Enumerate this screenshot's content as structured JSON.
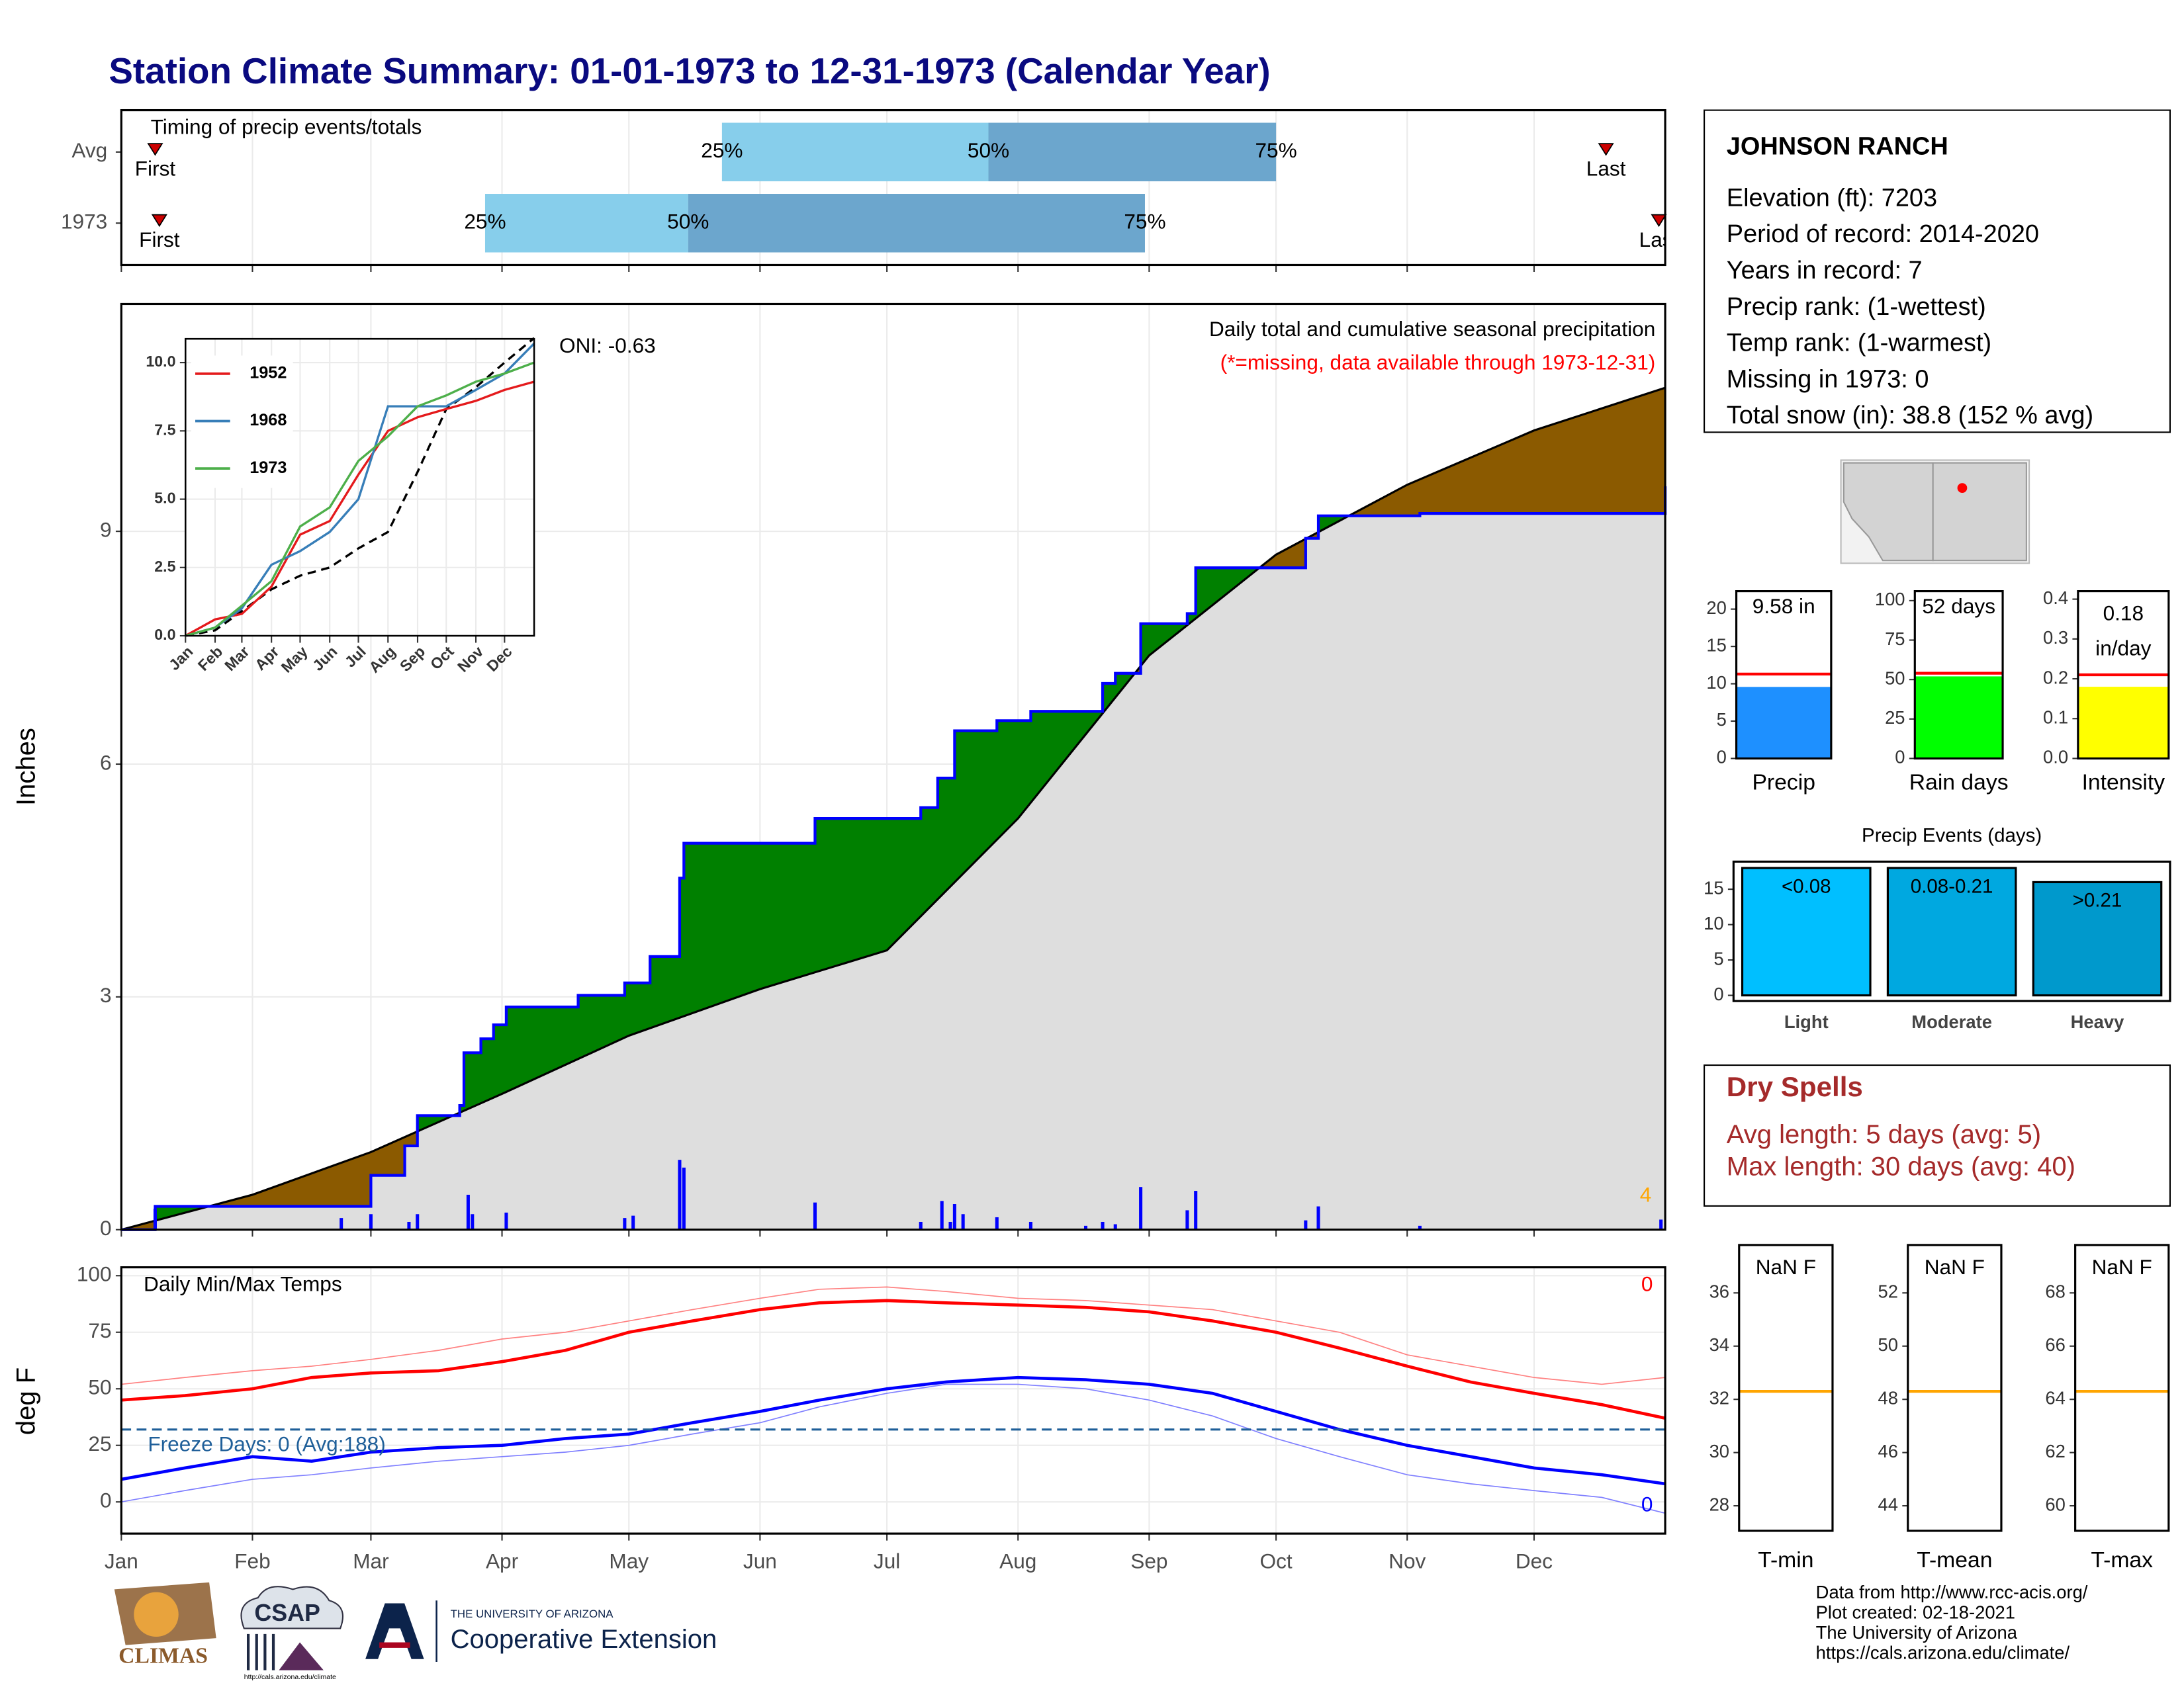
{
  "title": "Station Climate Summary: 01-01-1973 to 12-31-1973 (Calendar Year)",
  "station": {
    "name": "JOHNSON RANCH",
    "lines": [
      "Elevation (ft): 7203",
      "Period of record: 2014-2020",
      "Years in record: 7",
      "Precip rank:  (1-wettest)",
      "Temp rank:  (1-warmest)",
      "Missing in 1973: 0",
      "Total snow (in): 38.8 (152 % avg)"
    ]
  },
  "dry_spells": {
    "title": "Dry Spells",
    "lines": [
      "Avg length: 5 days (avg: 5)",
      "Max length: 30 days (avg: 40)"
    ]
  },
  "footer": {
    "logos": [
      "CLIMAS",
      "CSAP",
      "http://cals.arizona.edu/climate",
      "THE UNIVERSITY OF ARIZONA",
      "Cooperative Extension"
    ],
    "credits": [
      "Data from http://www.rcc-acis.org/",
      "Plot created: 02-18-2021",
      "The University of Arizona",
      "https://cals.arizona.edu/climate/"
    ]
  },
  "chart_data": [
    {
      "type": "timing",
      "title": "Timing of precip events/totals",
      "xlim": [
        0,
        365
      ],
      "xticks": [
        0,
        31,
        59,
        90,
        120,
        151,
        181,
        212,
        243,
        273,
        304,
        334
      ],
      "marker_labels": {
        "first": "First",
        "last": "Last",
        "q25": "25%",
        "q50": "50%",
        "q75": "75%"
      },
      "colors": {
        "early": "#87ceeb",
        "late": "#6ca6cd",
        "marker": "#cc0000"
      },
      "rows": [
        {
          "name": "Avg",
          "first": 8,
          "q25": 142,
          "q50": 205,
          "q75": 273,
          "last": 351
        },
        {
          "name": "1973",
          "first": 9,
          "q25": 86,
          "q50": 134,
          "q75": 242,
          "last": 363.5
        }
      ]
    },
    {
      "type": "cumulative",
      "ylabel": "Inches",
      "note": "Daily total and cumulative seasonal precipitation",
      "missing_note": "(*=missing, data available through 1973-12-31)",
      "oni": "ONI: -0.63",
      "annotation": "4",
      "xlim": [
        0,
        365
      ],
      "xticks": [
        0,
        31,
        59,
        90,
        120,
        151,
        181,
        212,
        243,
        273,
        304,
        334
      ],
      "ylim": [
        0,
        11.93
      ],
      "yticks": [
        0,
        3,
        6,
        9
      ],
      "grid": true,
      "colors": {
        "observed": "#0000ff",
        "average": "#dedede",
        "above": "#008000",
        "below": "#8b5a00",
        "daily": "#0000ff",
        "annotation": "#ffa500"
      },
      "observed": {
        "x": [
          0,
          8,
          59,
          67,
          70,
          80,
          81,
          85,
          88,
          91,
          108,
          119,
          125,
          132,
          133,
          164,
          189,
          193,
          197,
          207,
          215,
          232,
          235,
          241,
          252,
          254,
          280,
          283,
          307,
          365
        ],
        "values": [
          0,
          0.3,
          0.7,
          1.08,
          1.47,
          1.6,
          2.28,
          2.46,
          2.64,
          2.87,
          3.02,
          3.18,
          3.52,
          4.53,
          4.98,
          5.3,
          5.44,
          5.82,
          6.43,
          6.56,
          6.68,
          7.04,
          7.17,
          7.81,
          7.94,
          8.53,
          8.91,
          9.2,
          9.23,
          9.58
        ]
      },
      "average": {
        "x": [
          0,
          31,
          59,
          90,
          120,
          151,
          181,
          212,
          243,
          273,
          304,
          334,
          365
        ],
        "values": [
          0,
          0.45,
          1.0,
          1.75,
          2.5,
          3.1,
          3.6,
          5.3,
          7.4,
          8.7,
          9.6,
          10.3,
          10.85
        ]
      },
      "daily": {
        "x": [
          8,
          52,
          59,
          68,
          70,
          82,
          83,
          91,
          119,
          121,
          132,
          133,
          164,
          189,
          194,
          196,
          197,
          199,
          207,
          215,
          228,
          232,
          235,
          241,
          252,
          254,
          280,
          283,
          307,
          364
        ],
        "values": [
          0.27,
          0.15,
          0.2,
          0.1,
          0.2,
          0.45,
          0.2,
          0.22,
          0.15,
          0.18,
          0.9,
          0.8,
          0.35,
          0.1,
          0.37,
          0.1,
          0.33,
          0.2,
          0.16,
          0.1,
          0.05,
          0.1,
          0.07,
          0.55,
          0.25,
          0.5,
          0.12,
          0.3,
          0.05,
          0.13
        ]
      }
    },
    {
      "type": "line",
      "x": [
        0,
        31,
        59,
        90,
        120,
        151,
        181,
        212,
        243,
        273,
        304,
        334,
        365
      ],
      "xlim": [
        0,
        365
      ],
      "xticks": [
        {
          "value": 0,
          "label": "Jan"
        },
        {
          "value": 31,
          "label": "Feb"
        },
        {
          "value": 59,
          "label": "Mar"
        },
        {
          "value": 90,
          "label": "Apr"
        },
        {
          "value": 120,
          "label": "May"
        },
        {
          "value": 151,
          "label": "Jun"
        },
        {
          "value": 181,
          "label": "Jul"
        },
        {
          "value": 212,
          "label": "Aug"
        },
        {
          "value": 243,
          "label": "Sep"
        },
        {
          "value": 273,
          "label": "Oct"
        },
        {
          "value": 304,
          "label": "Nov"
        },
        {
          "value": 334,
          "label": "Dec"
        }
      ],
      "ylim": [
        0,
        10.87
      ],
      "yticks": [
        {
          "value": 0,
          "label": "0.0"
        },
        {
          "value": 2.5,
          "label": "2.5"
        },
        {
          "value": 5,
          "label": "5.0"
        },
        {
          "value": 7.5,
          "label": "7.5"
        },
        {
          "value": 10,
          "label": "10.0"
        }
      ],
      "grid": true,
      "average": {
        "color": "#000000",
        "values": [
          0,
          0.2,
          0.9,
          1.7,
          2.2,
          2.5,
          3.2,
          3.8,
          6.0,
          8.3,
          9.1,
          10.0,
          10.9
        ]
      },
      "series": [
        {
          "name": "1952",
          "color": "#e41a1c",
          "values": [
            0,
            0.6,
            0.8,
            1.8,
            3.7,
            4.2,
            5.9,
            7.5,
            8.0,
            8.3,
            8.6,
            9.0,
            9.3
          ]
        },
        {
          "name": "1968",
          "color": "#377eb8",
          "values": [
            0,
            0.3,
            1.0,
            2.6,
            3.1,
            3.8,
            5.0,
            8.4,
            8.4,
            8.4,
            9.0,
            9.6,
            10.7
          ]
        },
        {
          "name": "1973",
          "color": "#4daf4a",
          "values": [
            0,
            0.3,
            1.1,
            2.0,
            4.0,
            4.7,
            6.4,
            7.3,
            8.4,
            8.8,
            9.3,
            9.6,
            10.0
          ]
        }
      ]
    },
    {
      "type": "gauge",
      "label": "Precip",
      "value": 9.58,
      "value_label": [
        "9.58 in"
      ],
      "average": 11.3,
      "color": "#1e90ff",
      "average_color": "#ff0000",
      "ylim": [
        0,
        22.4
      ],
      "yticks": [
        0,
        5,
        10,
        15,
        20
      ]
    },
    {
      "type": "gauge",
      "label": "Rain days",
      "value": 52,
      "value_label": [
        "52 days"
      ],
      "average": 54,
      "color": "#00ff00",
      "average_color": "#ff0000",
      "ylim": [
        0,
        106
      ],
      "yticks": [
        0,
        25,
        50,
        75,
        100
      ]
    },
    {
      "type": "gauge",
      "label": "Intensity",
      "value": 0.18,
      "value_label": [
        "0.18",
        "in/day"
      ],
      "average": 0.21,
      "color": "#ffff00",
      "average_color": "#ff0000",
      "ylim": [
        0,
        0.42
      ],
      "yticks": [
        {
          "value": 0,
          "label": "0.0"
        },
        0.1,
        0.2,
        0.3,
        0.4
      ]
    },
    {
      "type": "bar",
      "title": "Precip Events (days)",
      "categories": [
        "Light",
        "Moderate",
        "Heavy"
      ],
      "bin_labels": [
        "<0.08",
        "0.08-0.21",
        ">0.21"
      ],
      "values": [
        18,
        18,
        16
      ],
      "colors": [
        "#00bfff",
        "#00a8e0",
        "#0099cc"
      ],
      "ylim": [
        -0.8,
        18.9
      ],
      "yticks": [
        0,
        5,
        10,
        15
      ]
    },
    {
      "type": "temps",
      "title": "Daily Min/Max Temps",
      "ylabel": "deg F",
      "max_count": "0",
      "min_count": "0",
      "freeze_label": "Freeze Days: 0 (Avg:188)",
      "freeze_line": 32,
      "freeze_color": "#1f5f99",
      "xlim": [
        0,
        365
      ],
      "xticks": [
        {
          "value": 0,
          "label": "Jan"
        },
        {
          "value": 31,
          "label": "Feb"
        },
        {
          "value": 59,
          "label": "Mar"
        },
        {
          "value": 90,
          "label": "Apr"
        },
        {
          "value": 120,
          "label": "May"
        },
        {
          "value": 151,
          "label": "Jun"
        },
        {
          "value": 181,
          "label": "Jul"
        },
        {
          "value": 212,
          "label": "Aug"
        },
        {
          "value": 243,
          "label": "Sep"
        },
        {
          "value": 273,
          "label": "Oct"
        },
        {
          "value": 304,
          "label": "Nov"
        },
        {
          "value": 334,
          "label": "Dec"
        }
      ],
      "ylim": [
        -14,
        103.7
      ],
      "yticks": [
        0,
        25,
        50,
        75,
        100
      ],
      "grid": true,
      "x": [
        0,
        15,
        31,
        45,
        59,
        75,
        90,
        105,
        120,
        135,
        151,
        165,
        181,
        195,
        212,
        228,
        243,
        258,
        273,
        288,
        304,
        319,
        334,
        350,
        365
      ],
      "series": [
        {
          "color": "#ff8080",
          "width": 0.8,
          "values": [
            52,
            55,
            58,
            60,
            63,
            67,
            72,
            75,
            80,
            85,
            90,
            94,
            95,
            93,
            90,
            89,
            87,
            85,
            80,
            75,
            65,
            60,
            55,
            52,
            55
          ]
        },
        {
          "color": "#8080ff",
          "width": 0.8,
          "values": [
            0,
            5,
            10,
            12,
            15,
            18,
            20,
            22,
            25,
            30,
            35,
            42,
            48,
            52,
            52,
            50,
            45,
            38,
            28,
            20,
            12,
            8,
            5,
            2,
            -5
          ]
        },
        {
          "color": "#ff0000",
          "width": 2.2,
          "values": [
            45,
            47,
            50,
            55,
            57,
            58,
            62,
            67,
            75,
            80,
            85,
            88,
            89,
            88,
            87,
            86,
            84,
            80,
            75,
            68,
            60,
            53,
            48,
            43,
            37
          ]
        },
        {
          "color": "#0000ff",
          "width": 2.2,
          "values": [
            10,
            15,
            20,
            18,
            22,
            24,
            25,
            28,
            30,
            35,
            40,
            45,
            50,
            53,
            55,
            54,
            52,
            48,
            40,
            32,
            25,
            20,
            15,
            12,
            8
          ]
        }
      ]
    },
    {
      "type": "gauge-line",
      "label": "T-min",
      "value_label": "NaN F",
      "line_value": 32.3,
      "color": "#ffa500",
      "ylim": [
        27.06,
        37.8
      ],
      "yticks": [
        28,
        30,
        32,
        34,
        36
      ]
    },
    {
      "type": "gauge-line",
      "label": "T-mean",
      "value_label": "NaN F",
      "line_value": 48.3,
      "color": "#ffa500",
      "ylim": [
        43.06,
        53.8
      ],
      "yticks": [
        44,
        46,
        48,
        50,
        52
      ]
    },
    {
      "type": "gauge-line",
      "label": "T-max",
      "value_label": "NaN F",
      "line_value": 64.3,
      "color": "#ffa500",
      "ylim": [
        59.06,
        69.8
      ],
      "yticks": [
        60,
        62,
        64,
        66,
        68
      ]
    }
  ]
}
